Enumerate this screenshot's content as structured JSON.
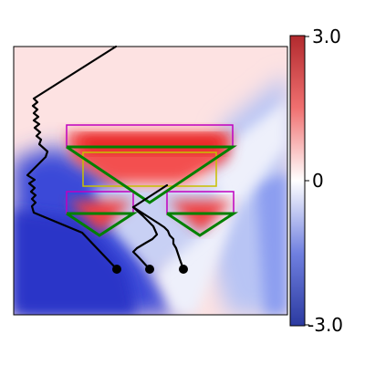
{
  "colorbar": {
    "max_label": "3.0",
    "mid_label": "0",
    "min_label": "-3.0",
    "range": [
      -3.0,
      3.0
    ],
    "colors": {
      "high": "#b22a2e",
      "mid": "#ffffff",
      "low": "#2b3aa0"
    }
  },
  "overlay_colors": {
    "magenta_boxes": "#c000c0",
    "yellow_box": "#c8c000",
    "green_triangles": "#008000",
    "paths": "#000000"
  }
}
